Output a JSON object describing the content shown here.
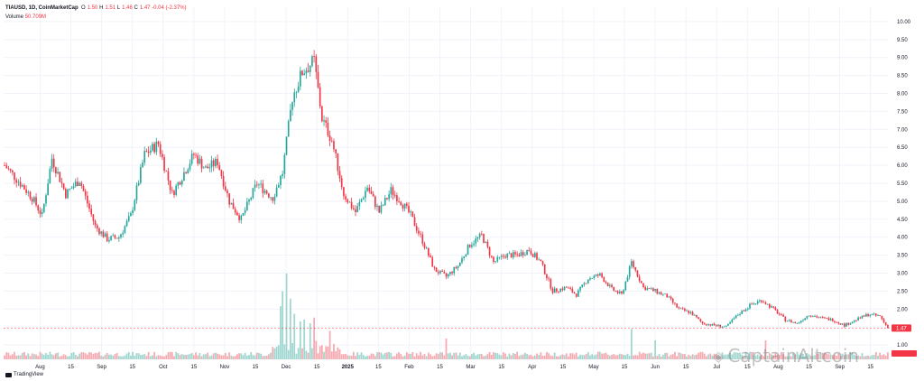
{
  "legend": {
    "symbol": "TIAUSD, 1D, CoinMarketCap",
    "open_label": "O",
    "open": "1.50",
    "high_label": "H",
    "high": "1.51",
    "low_label": "L",
    "low": "1.46",
    "close_label": "C",
    "close": "1.47",
    "change": "-0.04 (-2.37%)",
    "volume_label": "Volume",
    "volume": "50.709M"
  },
  "last_price_badge": "1.47",
  "volume_badge": "",
  "branding": "TradingView",
  "watermark_text": "CaptainAltcoin",
  "colors": {
    "up": "#26a69a",
    "down": "#f23645",
    "up_volume": "#9fd6cf",
    "down_volume": "#f7a9b0",
    "grid": "#f0f3fa",
    "axis_text": "#131722"
  },
  "chart_data": {
    "type": "candlestick",
    "title": "TIAUSD, 1D, CoinMarketCap",
    "ylim": [
      0.6,
      10.4
    ],
    "y_ticks": [
      "1.00",
      "1.50",
      "2.00",
      "2.50",
      "3.00",
      "3.50",
      "4.00",
      "4.50",
      "5.00",
      "5.50",
      "6.00",
      "6.50",
      "7.00",
      "7.50",
      "8.00",
      "8.50",
      "9.00",
      "9.50",
      "10.00"
    ],
    "x_ticks": [
      "Aug",
      "15",
      "Sep",
      "15",
      "Oct",
      "15",
      "Nov",
      "15",
      "Dec",
      "15",
      "2025",
      "15",
      "Feb",
      "15",
      "Mar",
      "15",
      "Apr",
      "15",
      "May",
      "15",
      "Jun",
      "15",
      "Jul",
      "15",
      "Aug",
      "15",
      "Sep",
      "15"
    ],
    "x_tick_bold": [
      "2025"
    ],
    "grid": true,
    "last_close": 1.47,
    "close_path": [
      [
        0,
        6.0
      ],
      [
        8,
        5.5
      ],
      [
        14,
        5.1
      ],
      [
        19,
        4.6
      ],
      [
        24,
        6.2
      ],
      [
        31,
        5.2
      ],
      [
        38,
        5.6
      ],
      [
        46,
        4.3
      ],
      [
        52,
        3.95
      ],
      [
        58,
        4.0
      ],
      [
        64,
        4.6
      ],
      [
        71,
        6.3
      ],
      [
        78,
        6.6
      ],
      [
        85,
        5.2
      ],
      [
        90,
        5.7
      ],
      [
        96,
        6.3
      ],
      [
        102,
        5.9
      ],
      [
        108,
        6.1
      ],
      [
        114,
        5.0
      ],
      [
        120,
        4.5
      ],
      [
        128,
        5.5
      ],
      [
        136,
        5.1
      ],
      [
        141,
        5.8
      ],
      [
        146,
        7.9
      ],
      [
        151,
        8.6
      ],
      [
        157,
        8.9
      ],
      [
        161,
        7.3
      ],
      [
        166,
        6.7
      ],
      [
        172,
        5.2
      ],
      [
        178,
        4.7
      ],
      [
        184,
        5.4
      ],
      [
        190,
        4.7
      ],
      [
        196,
        5.3
      ],
      [
        201,
        5.0
      ],
      [
        206,
        4.6
      ],
      [
        212,
        3.9
      ],
      [
        218,
        3.1
      ],
      [
        224,
        2.9
      ],
      [
        230,
        3.2
      ],
      [
        236,
        3.8
      ],
      [
        242,
        4.05
      ],
      [
        248,
        3.3
      ],
      [
        254,
        3.5
      ],
      [
        260,
        3.5
      ],
      [
        266,
        3.65
      ],
      [
        272,
        3.3
      ],
      [
        278,
        2.5
      ],
      [
        285,
        2.6
      ],
      [
        290,
        2.4
      ],
      [
        296,
        2.85
      ],
      [
        302,
        2.95
      ],
      [
        308,
        2.55
      ],
      [
        313,
        2.4
      ],
      [
        318,
        3.3
      ],
      [
        324,
        2.6
      ],
      [
        330,
        2.5
      ],
      [
        336,
        2.35
      ],
      [
        342,
        2.0
      ],
      [
        348,
        1.9
      ],
      [
        354,
        1.6
      ],
      [
        360,
        1.55
      ],
      [
        366,
        1.5
      ],
      [
        372,
        1.85
      ],
      [
        378,
        2.1
      ],
      [
        384,
        2.25
      ],
      [
        390,
        2.0
      ],
      [
        396,
        1.7
      ],
      [
        402,
        1.6
      ],
      [
        408,
        1.85
      ],
      [
        414,
        1.75
      ],
      [
        420,
        1.7
      ],
      [
        426,
        1.55
      ],
      [
        432,
        1.7
      ],
      [
        438,
        1.85
      ],
      [
        444,
        1.8
      ],
      [
        448,
        1.47
      ]
    ],
    "total_days": 449,
    "volume_spikes": [
      [
        140,
        2.8
      ],
      [
        141,
        3.6
      ],
      [
        143,
        4.6
      ],
      [
        145,
        3.2
      ],
      [
        147,
        2.4
      ],
      [
        150,
        2.0
      ],
      [
        152,
        2.1
      ],
      [
        155,
        1.9
      ],
      [
        157,
        2.2
      ],
      [
        165,
        1.5
      ],
      [
        224,
        1.1
      ],
      [
        318,
        1.6
      ],
      [
        330,
        1.0
      ],
      [
        386,
        1.0
      ]
    ]
  }
}
